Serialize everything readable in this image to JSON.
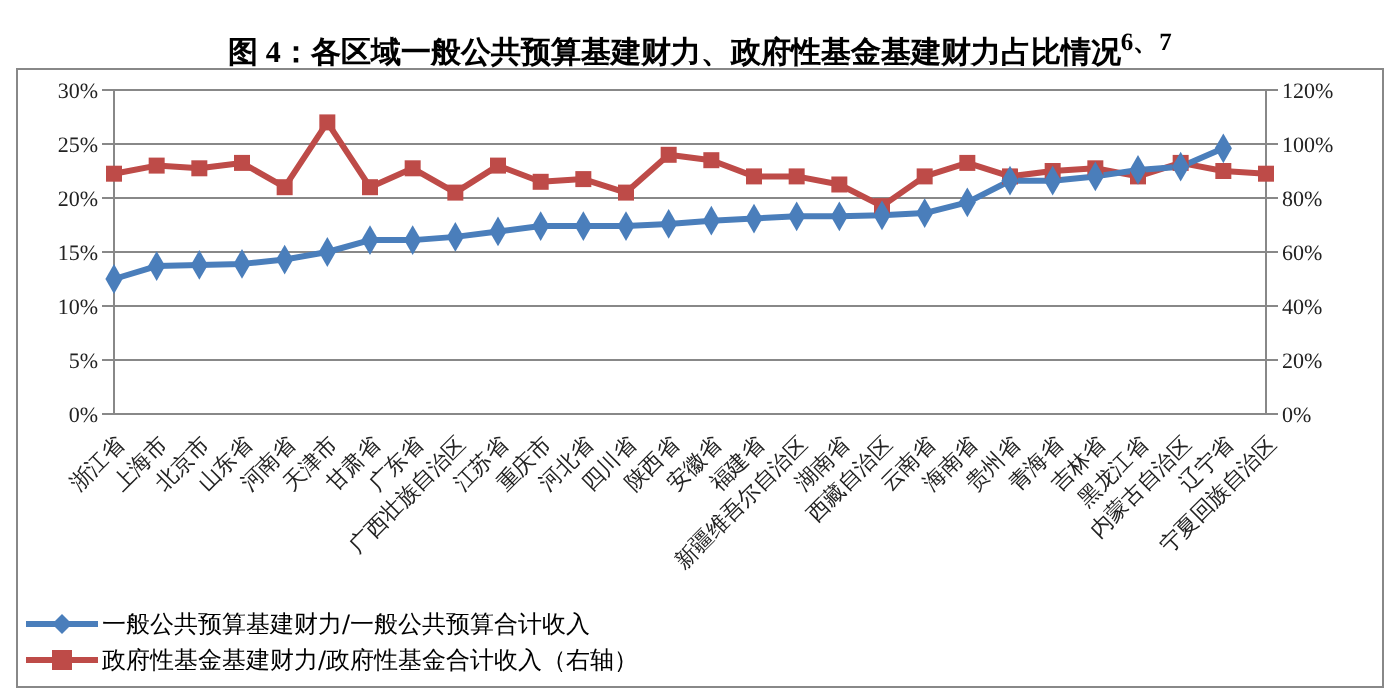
{
  "chart_data": {
    "type": "line",
    "title": "图 4：各区域一般公共预算基建财力、政府性基金基建财力占比情况$^{6、7}$",
    "categories": [
      "浙江省",
      "上海市",
      "北京市",
      "山东省",
      "河南省",
      "天津市",
      "甘肃省",
      "广东省",
      "广西壮族自治区",
      "江苏省",
      "重庆市",
      "河北省",
      "四川省",
      "陕西省",
      "安徽省",
      "福建省",
      "新疆维吾尔自治区",
      "湖南省",
      "西藏自治区",
      "云南省",
      "海南省",
      "贵州省",
      "青海省",
      "吉林省",
      "黑龙江省",
      "内蒙古自治区",
      "辽宁省",
      "宁夏回族自治区"
    ],
    "series": [
      {
        "name": "一般公共预算基建财力/一般公共预算合计收入",
        "color": "#4a7ebb",
        "marker": "diamond",
        "values": [
          12.5,
          13.7,
          13.8,
          13.9,
          14.3,
          15.0,
          16.1,
          16.1,
          16.4,
          16.9,
          17.4,
          17.4,
          17.4,
          17.6,
          17.9,
          18.1,
          18.3,
          18.3,
          18.4,
          18.6,
          19.6,
          21.6,
          21.6,
          22.0,
          22.6,
          22.9,
          24.6,
          null
        ]
      },
      {
        "name": "政府性基金基建财力/政府性基金合计收入（右轴）",
        "color": "#be4b48",
        "marker": "square",
        "axis": "y2",
        "values": [
          89,
          92,
          91,
          93,
          84,
          108,
          84,
          91,
          82,
          92,
          86,
          87,
          82,
          96,
          94,
          88,
          88,
          85,
          77,
          88,
          93,
          88,
          90,
          91,
          88,
          93,
          90,
          89
        ]
      }
    ],
    "ylim": [
      0,
      30
    ],
    "yticks": [
      {
        "value": 0,
        "label": "0%"
      },
      {
        "value": 5,
        "label": "5%"
      },
      {
        "value": 10,
        "label": "10%"
      },
      {
        "value": 15,
        "label": "15%"
      },
      {
        "value": 20,
        "label": "20%"
      },
      {
        "value": 25,
        "label": "25%"
      },
      {
        "value": 30,
        "label": "30%"
      }
    ],
    "y2lim": [
      0,
      120
    ],
    "y2ticks": [
      {
        "value": 0,
        "label": "0%"
      },
      {
        "value": 20,
        "label": "20%"
      },
      {
        "value": 40,
        "label": "40%"
      },
      {
        "value": 60,
        "label": "60%"
      },
      {
        "value": 80,
        "label": "80%"
      },
      {
        "value": 100,
        "label": "100%"
      },
      {
        "value": 120,
        "label": "120%"
      }
    ],
    "grid": "y",
    "legend": "bottom left"
  }
}
